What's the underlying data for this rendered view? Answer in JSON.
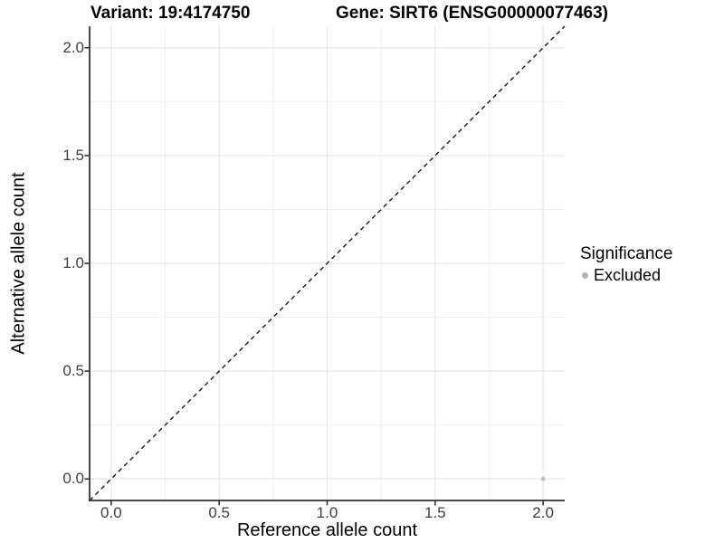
{
  "header": {
    "variant_title": "Variant: 19:4174750",
    "gene_title": "Gene: SIRT6 (ENSG00000077463)"
  },
  "axes": {
    "x": {
      "label": "Reference allele count",
      "tick_labels": [
        "0.0",
        "0.5",
        "1.0",
        "1.5",
        "2.0"
      ]
    },
    "y": {
      "label": "Alternative allele count",
      "tick_labels": [
        "0.0",
        "0.5",
        "1.0",
        "1.5",
        "2.0"
      ]
    }
  },
  "legend": {
    "title": "Significance",
    "position": "right",
    "items": [
      {
        "label": "Excluded",
        "color": "#b5b5b5"
      }
    ]
  },
  "chart_data": {
    "type": "scatter",
    "title": "Variant: 19:4174750 | Gene: SIRT6 (ENSG00000077463)",
    "xlabel": "Reference allele count",
    "ylabel": "Alternative allele count",
    "xlim": [
      -0.1,
      2.1
    ],
    "ylim": [
      -0.1,
      2.1
    ],
    "x_ticks": [
      0,
      0.5,
      1,
      1.5,
      2
    ],
    "y_ticks": [
      0,
      0.5,
      1,
      1.5,
      2
    ],
    "grid": "major and minor gridlines, light grey on white panel",
    "legend_position": "right",
    "series": [
      {
        "name": "Excluded",
        "color": "#bdbdbd",
        "points": [
          [
            2.0,
            0.0
          ]
        ]
      }
    ],
    "reference_line": {
      "meaning": "identity line y = x",
      "style": "dashed",
      "color": "#1a1a1a",
      "from": [
        -0.1,
        -0.1
      ],
      "to": [
        2.1,
        2.1
      ]
    }
  },
  "colors": {
    "background": "#ffffff",
    "grid_major": "#e3e3e3",
    "grid_minor": "#f0f0f0",
    "axis_line": "#333333",
    "tick_mark": "#333333",
    "tick_label": "#404040",
    "point": "#bdbdbd",
    "dashed_line": "#1a1a1a"
  }
}
